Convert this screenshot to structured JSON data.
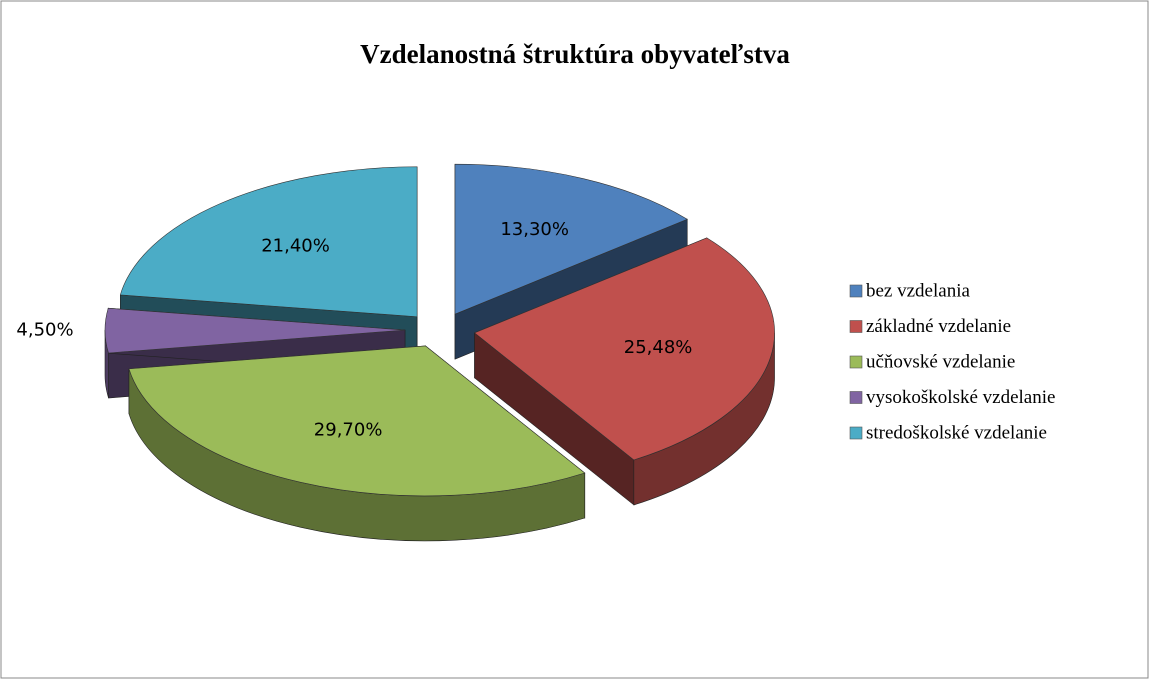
{
  "chart_data": {
    "type": "pie3d",
    "title": "Vzdelanostná štruktúra obyvateľstva",
    "categories": [
      "bez vzdelania",
      "základné vzdelanie",
      "učňovské vzdelanie",
      "vysokoškolské vzdelanie",
      "stredoškolské vzdelanie"
    ],
    "values": [
      13.3,
      25.48,
      29.7,
      4.5,
      21.4
    ],
    "value_labels": [
      "13,30%",
      "25,48%",
      "29,70%",
      "4,50%",
      "21,40%"
    ],
    "colors": [
      "#4f81bd",
      "#c0504d",
      "#9bbb59",
      "#8064a2",
      "#4bacc6"
    ],
    "legend": "right"
  }
}
